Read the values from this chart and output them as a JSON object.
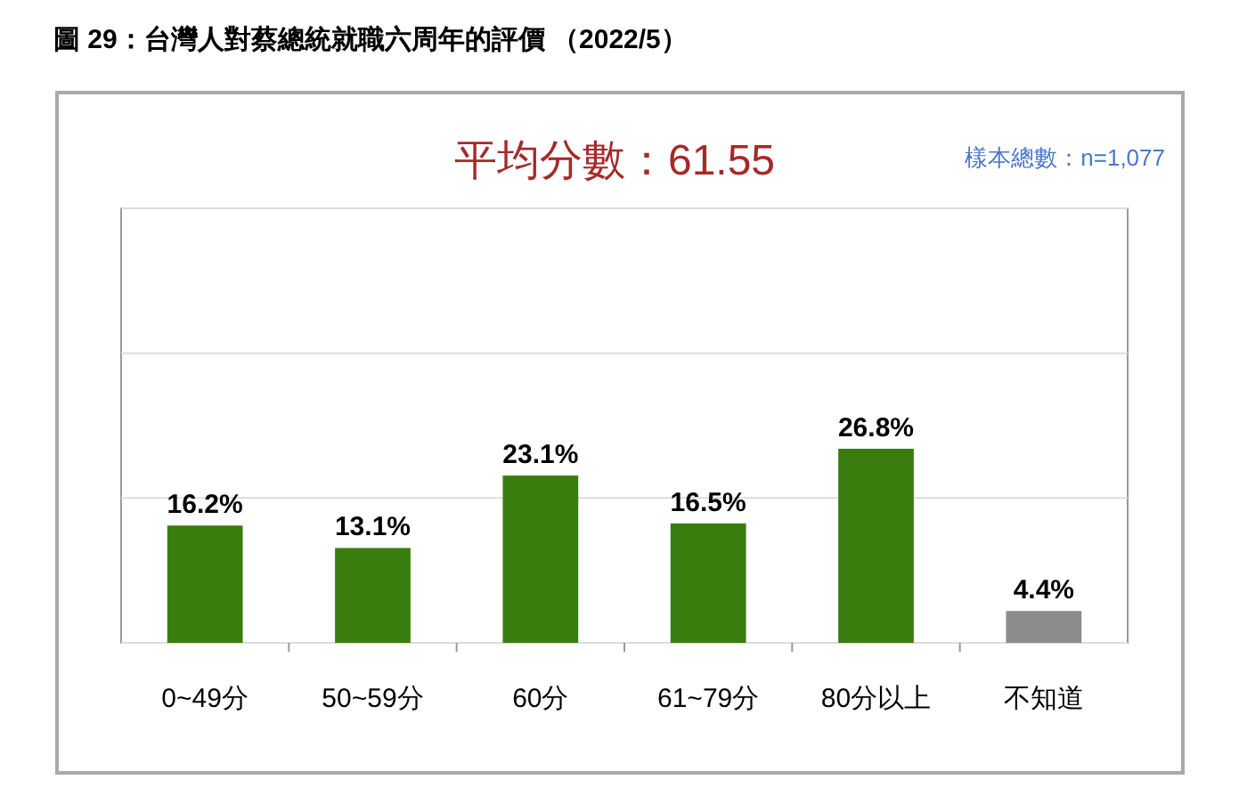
{
  "chart_data": {
    "type": "bar",
    "title": "圖 29：台灣人對蔡總統就職六周年的評價 （2022/5）",
    "subtitle": "平均分數：61.55",
    "annotations": [
      "樣本總數：n=1,077"
    ],
    "categories": [
      "0~49分",
      "50~59分",
      "60分",
      "61~79分",
      "80分以上",
      "不知道"
    ],
    "values": [
      16.2,
      13.1,
      23.1,
      16.5,
      26.8,
      4.4
    ],
    "colors": [
      "#3a7d0f",
      "#3a7d0f",
      "#3a7d0f",
      "#3a7d0f",
      "#3a7d0f",
      "#8c8c8c"
    ],
    "value_labels": [
      "16.2%",
      "13.1%",
      "23.1%",
      "16.5%",
      "26.8%",
      "4.4%"
    ],
    "ylim": [
      0,
      60
    ],
    "yticks": [
      {
        "value": 0,
        "label": null
      },
      {
        "value": 20,
        "label": null
      },
      {
        "value": 40,
        "label": null
      },
      {
        "value": 60,
        "label": null
      }
    ],
    "grid": "y",
    "tick_labels": "x"
  }
}
